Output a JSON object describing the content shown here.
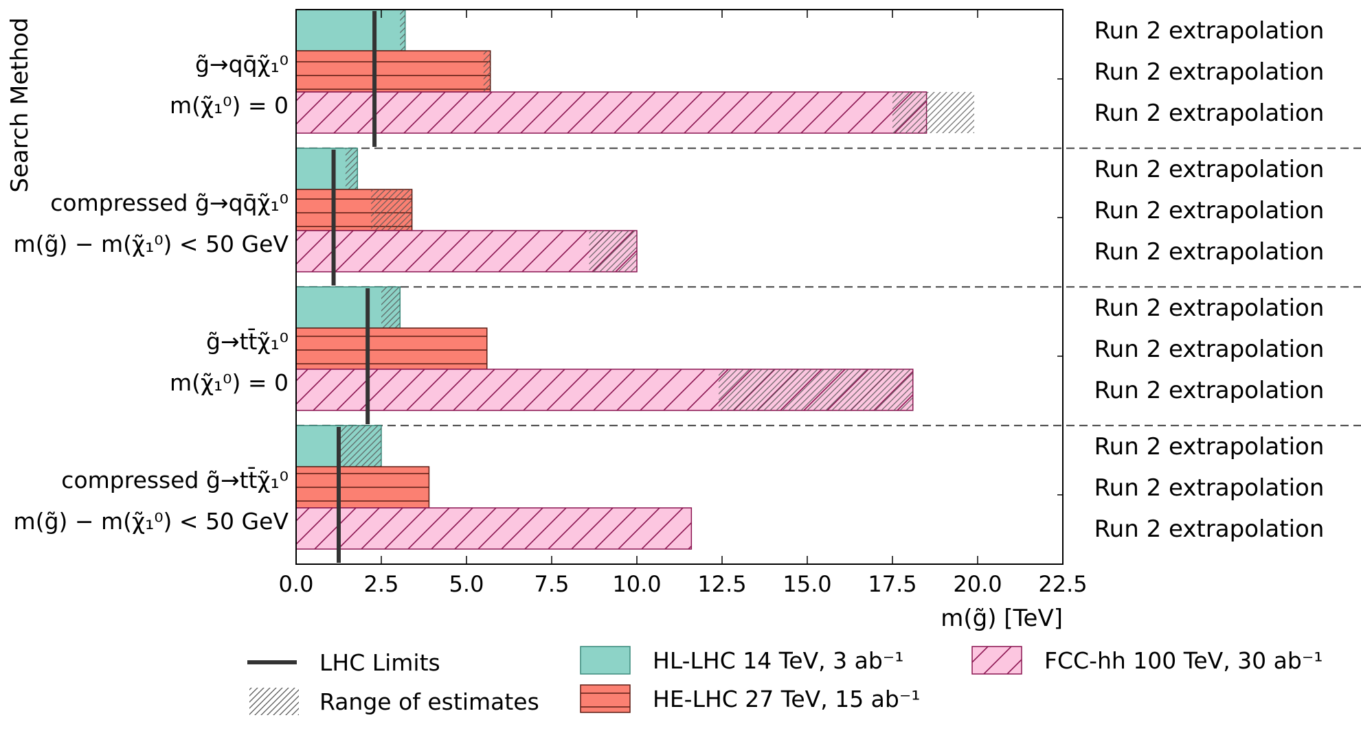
{
  "chart_data": {
    "type": "bar",
    "orientation": "horizontal",
    "xlabel": "m(g̃) [TeV]",
    "ylabel": "Search Method",
    "xlim": [
      0,
      22.5
    ],
    "xticks": [
      "0.0",
      "2.5",
      "5.0",
      "7.5",
      "10.0",
      "12.5",
      "15.0",
      "17.5",
      "20.0",
      "22.5"
    ],
    "groups": [
      {
        "label_lines": [
          "g̃→qq̄χ̃₁⁰",
          "m(χ̃₁⁰) = 0"
        ],
        "lhc_limit": 2.3,
        "bars": [
          {
            "series": "HL-LHC",
            "value": 3.2,
            "range": [
              3.05,
              3.2
            ],
            "side_label": "Run 2 extrapolation"
          },
          {
            "series": "HE-LHC",
            "value": 5.7,
            "range": [
              5.5,
              5.7
            ],
            "side_label": "Run 2 extrapolation"
          },
          {
            "series": "FCC-hh",
            "value": 18.5,
            "range": [
              17.5,
              19.9
            ],
            "side_label": "Run 2 extrapolation"
          }
        ]
      },
      {
        "label_lines": [
          "compressed g̃→qq̄χ̃₁⁰",
          "m(g̃) − m(χ̃₁⁰) < 50 GeV"
        ],
        "lhc_limit": 1.1,
        "bars": [
          {
            "series": "HL-LHC",
            "value": 1.8,
            "range": [
              1.45,
              1.8
            ],
            "side_label": "Run 2 extrapolation"
          },
          {
            "series": "HE-LHC",
            "value": 3.4,
            "range": [
              2.2,
              3.4
            ],
            "side_label": "Run 2 extrapolation"
          },
          {
            "series": "FCC-hh",
            "value": 10.0,
            "range": [
              8.6,
              10.0
            ],
            "side_label": "Run 2 extrapolation"
          }
        ]
      },
      {
        "label_lines": [
          "g̃→tt̄χ̃₁⁰",
          "m(χ̃₁⁰) = 0"
        ],
        "lhc_limit": 2.1,
        "bars": [
          {
            "series": "HL-LHC",
            "value": 3.05,
            "range": [
              2.5,
              3.05
            ],
            "side_label": "Run 2 extrapolation"
          },
          {
            "series": "HE-LHC",
            "value": 5.6,
            "range": null,
            "side_label": "Run 2 extrapolation"
          },
          {
            "series": "FCC-hh",
            "value": 18.1,
            "range": [
              12.4,
              18.1
            ],
            "side_label": "Run 2 extrapolation"
          }
        ]
      },
      {
        "label_lines": [
          "compressed g̃→tt̄χ̃₁⁰",
          "m(g̃) − m(χ̃₁⁰) < 50 GeV"
        ],
        "lhc_limit": 1.25,
        "bars": [
          {
            "series": "HL-LHC",
            "value": 2.5,
            "range": [
              1.3,
              2.5
            ],
            "side_label": "Run 2 extrapolation"
          },
          {
            "series": "HE-LHC",
            "value": 3.9,
            "range": null,
            "side_label": "Run 2 extrapolation"
          },
          {
            "series": "FCC-hh",
            "value": 11.6,
            "range": null,
            "side_label": "Run 2 extrapolation"
          }
        ]
      }
    ],
    "series": [
      {
        "key": "HL-LHC",
        "name": "HL-LHC 14 TeV, 3 ab⁻¹",
        "color": "#8dd3c7",
        "edge": "#3a8a7c",
        "pattern": "none"
      },
      {
        "key": "HE-LHC",
        "name": "HE-LHC 27 TeV, 15 ab⁻¹",
        "color": "#fb8072",
        "edge": "#5a1a12",
        "pattern": "horizontal-lines"
      },
      {
        "key": "FCC-hh",
        "name": "FCC-hh 100 TeV, 30 ab⁻¹",
        "color": "#fcc6e0",
        "edge": "#8a1450",
        "pattern": "diagonal-lines"
      }
    ],
    "legend": {
      "placement": "bottom",
      "entries": [
        {
          "key": "lhc",
          "label": "LHC Limits"
        },
        {
          "key": "range",
          "label": "Range of estimates"
        },
        {
          "key": "HL-LHC",
          "label": "HL-LHC 14 TeV, 3 ab⁻¹"
        },
        {
          "key": "HE-LHC",
          "label": "HE-LHC 27 TeV, 15 ab⁻¹"
        },
        {
          "key": "FCC-hh",
          "label": "FCC-hh 100 TeV, 30 ab⁻¹"
        }
      ]
    },
    "colors": {
      "lhc_line": "#333333",
      "separator": "#555555",
      "range_hatch": "#666666"
    }
  }
}
